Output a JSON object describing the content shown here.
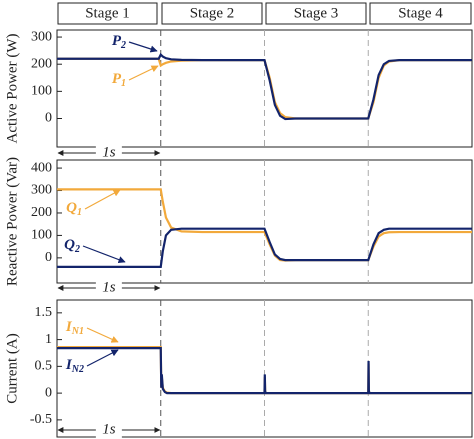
{
  "stages": [
    "Stage 1",
    "Stage 2",
    "Stage 3",
    "Stage 4"
  ],
  "chart_data": [
    {
      "type": "line",
      "y_label": "Active Power (W)",
      "x": [
        0,
        0.98,
        1.0,
        1.02,
        1.05,
        1.1,
        1.2,
        1.4,
        1.6,
        1.8,
        2.0,
        2.05,
        2.1,
        2.15,
        2.2,
        2.3,
        2.5,
        2.8,
        3.0,
        3.05,
        3.1,
        3.15,
        3.2,
        3.3,
        3.5,
        4.0
      ],
      "xlim": [
        0,
        4
      ],
      "ylim": [
        -105,
        326
      ],
      "yticks": [
        0,
        100,
        200,
        300
      ],
      "vlines": [
        1,
        2,
        3
      ],
      "span": {
        "label": "1s",
        "from": 0,
        "to": 1
      },
      "series": [
        {
          "name": "P",
          "subscript": "1",
          "color": "#f2a93b",
          "values": [
            220,
            220,
            195,
            200,
            205,
            210,
            213,
            215,
            215,
            215,
            215,
            150,
            60,
            20,
            5,
            0,
            0,
            0,
            0,
            60,
            150,
            195,
            210,
            215,
            215,
            215
          ]
        },
        {
          "name": "P",
          "subscript": "2",
          "color": "#13246b",
          "values": [
            220,
            220,
            235,
            228,
            222,
            218,
            216,
            215,
            215,
            215,
            215,
            140,
            50,
            10,
            -2,
            0,
            0,
            0,
            0,
            70,
            160,
            200,
            212,
            215,
            215,
            215
          ]
        }
      ]
    },
    {
      "type": "line",
      "y_label": "Reactive Power (Var)",
      "x": [
        0,
        0.98,
        1.0,
        1.02,
        1.05,
        1.1,
        1.2,
        1.4,
        1.6,
        1.8,
        2.0,
        2.05,
        2.1,
        2.15,
        2.2,
        2.3,
        2.5,
        2.8,
        3.0,
        3.05,
        3.1,
        3.15,
        3.2,
        3.3,
        3.5,
        4.0
      ],
      "xlim": [
        0,
        4
      ],
      "ylim": [
        -112,
        436
      ],
      "yticks": [
        0,
        100,
        200,
        300,
        400
      ],
      "vlines": [
        1,
        2,
        3
      ],
      "span": {
        "label": "1s",
        "from": 0,
        "to": 1
      },
      "series": [
        {
          "name": "Q",
          "subscript": "1",
          "color": "#f2a93b",
          "values": [
            305,
            305,
            305,
            250,
            180,
            135,
            118,
            115,
            115,
            115,
            115,
            60,
            10,
            -10,
            -12,
            -10,
            -10,
            -10,
            -10,
            50,
            95,
            110,
            114,
            115,
            115,
            115
          ]
        },
        {
          "name": "Q",
          "subscript": "2",
          "color": "#13246b",
          "values": [
            -40,
            -40,
            -40,
            30,
            100,
            125,
            130,
            130,
            130,
            130,
            130,
            70,
            15,
            -5,
            -10,
            -10,
            -10,
            -10,
            -10,
            60,
            110,
            125,
            130,
            130,
            130,
            130
          ]
        }
      ]
    },
    {
      "type": "line",
      "y_label": "Current (A)",
      "x": [
        0,
        0.99,
        1.0,
        1.005,
        1.01,
        1.02,
        1.04,
        1.06,
        1.1,
        2.0,
        2.003,
        2.006,
        2.01,
        3.0,
        3.003,
        3.006,
        3.01,
        4.0
      ],
      "xlim": [
        0,
        4
      ],
      "ylim": [
        -0.82,
        1.74
      ],
      "yticks": [
        -0.5,
        0,
        0.5,
        1,
        1.5
      ],
      "vlines": [
        1,
        2,
        3
      ],
      "span": {
        "label": "1s",
        "from": 0,
        "to": 1
      },
      "series": [
        {
          "name": "I",
          "subscript": "N1",
          "color": "#f2a93b",
          "values": [
            0.86,
            0.86,
            0.86,
            0.1,
            0.3,
            0.1,
            0.03,
            0.01,
            0,
            0,
            0.3,
            0.05,
            0,
            0,
            0.55,
            0.05,
            0,
            0
          ]
        },
        {
          "name": "I",
          "subscript": "N2",
          "color": "#13246b",
          "values": [
            0.84,
            0.84,
            0.84,
            0.1,
            0.35,
            0.08,
            0.02,
            0,
            0,
            0,
            0.35,
            0.05,
            0,
            0,
            0.6,
            0.05,
            0,
            0
          ]
        }
      ]
    }
  ]
}
